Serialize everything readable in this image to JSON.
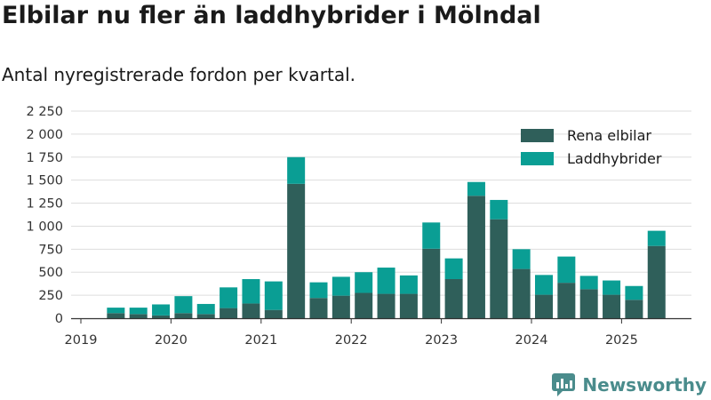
{
  "title": "Elbilar nu fler än laddhybrider i Mölndal",
  "subtitle": "Antal nyregistrerade fordon per kvartal.",
  "brand": "Newsworthy",
  "colors": {
    "rena_elbilar": "#2f5f5a",
    "laddhybrider": "#0a9e94",
    "grid": "#dddddd",
    "axis": "#333333",
    "brand": "#4a8c8c"
  },
  "chart_data": {
    "type": "bar",
    "stacked": true,
    "x_tick_labels": [
      "2019",
      "2020",
      "2021",
      "2022",
      "2023",
      "2024",
      "2025"
    ],
    "y_tick_labels": [
      "0",
      "250",
      "500",
      "750",
      "1 000",
      "1 250",
      "1 500",
      "1 750",
      "2 000",
      "2 250"
    ],
    "y_ticks": [
      0,
      250,
      500,
      750,
      1000,
      1250,
      1500,
      1750,
      2000,
      2250
    ],
    "ylim": [
      0,
      2250
    ],
    "xlabel": "",
    "ylabel": "",
    "grid": true,
    "legend_position": "top-right",
    "categories": [
      "2019 K1",
      "2019 K2",
      "2019 K3",
      "2019 K4",
      "2020 K1",
      "2020 K2",
      "2020 K3",
      "2020 K4",
      "2021 K1",
      "2021 K2",
      "2021 K3",
      "2021 K4",
      "2022 K1",
      "2022 K2",
      "2022 K3",
      "2022 K4",
      "2023 K1",
      "2023 K2",
      "2023 K3",
      "2023 K4",
      "2024 K1",
      "2024 K2",
      "2024 K3",
      "2024 K4",
      "2025 K1",
      "2025 K2"
    ],
    "series": [
      {
        "name": "Rena elbilar",
        "color": "#2f5f5a",
        "values": [
          0,
          55,
          45,
          30,
          55,
          45,
          110,
          160,
          90,
          1460,
          220,
          245,
          275,
          265,
          265,
          755,
          425,
          1330,
          1075,
          535,
          255,
          385,
          315,
          255,
          200,
          785
        ]
      },
      {
        "name": "Laddhybrider",
        "color": "#0a9e94",
        "values": [
          0,
          60,
          70,
          120,
          185,
          110,
          225,
          265,
          310,
          290,
          170,
          205,
          225,
          285,
          200,
          285,
          225,
          150,
          210,
          215,
          215,
          285,
          145,
          155,
          150,
          165
        ]
      }
    ]
  }
}
